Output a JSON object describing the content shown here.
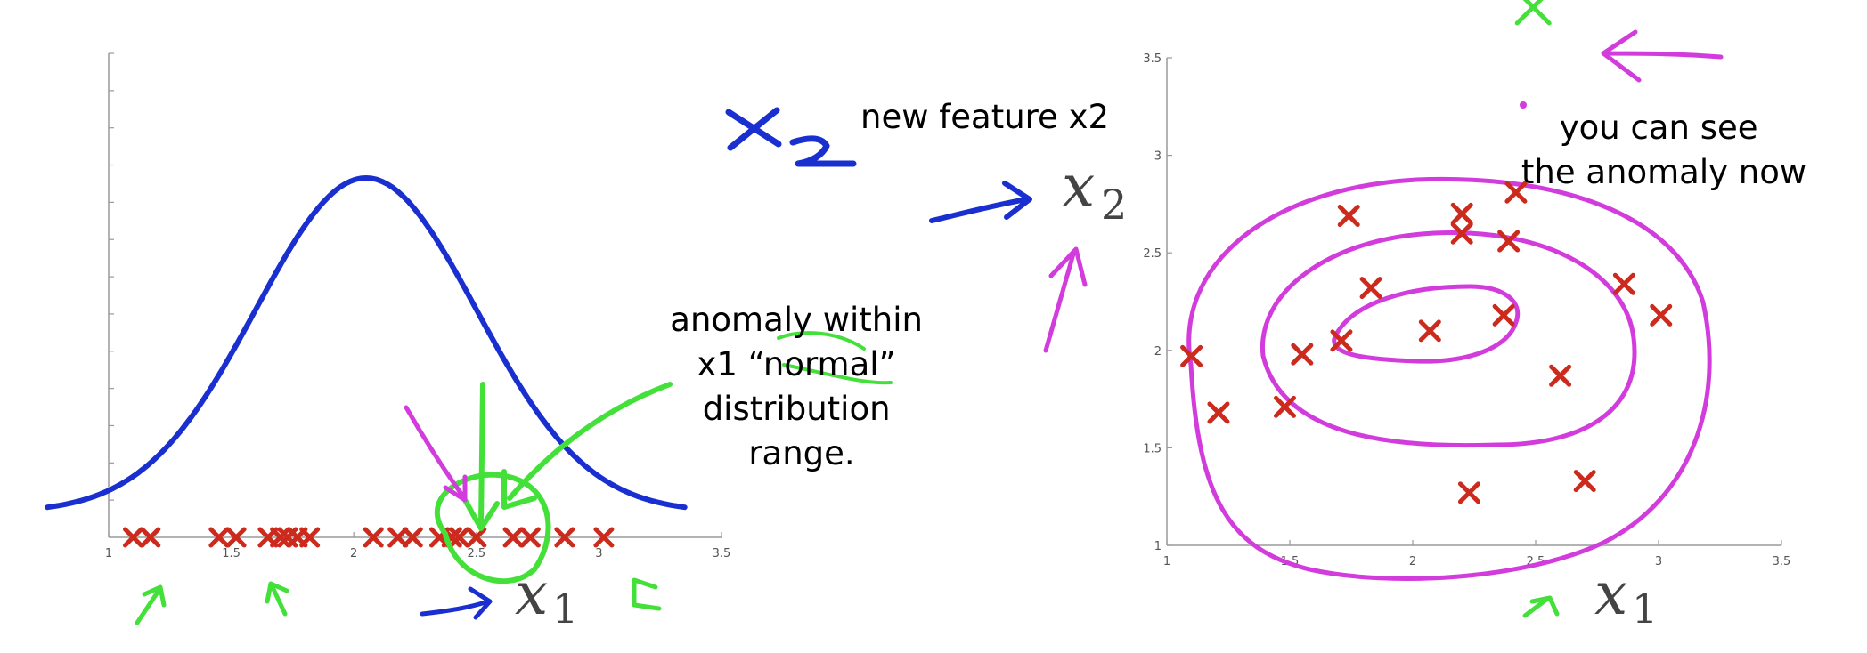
{
  "colors": {
    "axis": "#9a9a9a",
    "gaussian": "#1a2fd0",
    "marker": "#cc2a1c",
    "contour": "#d23cdc",
    "annotation_green": "#44e03a",
    "annotation_blue": "#1a2fd0",
    "annotation_magenta": "#d23cdc"
  },
  "annotations": {
    "left_note": [
      "anomaly within",
      "x1 “normal”",
      "distribution",
      "range."
    ],
    "top_note": "new feature x2",
    "right_note": [
      "you can see",
      "the anomaly now"
    ]
  },
  "chart_data": [
    {
      "type": "scatter",
      "title": "",
      "xlabel": "x1",
      "xlim": [
        1,
        3.5
      ],
      "x_ticks": [
        "1",
        "1.5",
        "2",
        "2.5",
        "3",
        "3.5"
      ],
      "grid": false,
      "curve": {
        "name": "",
        "shape": "gaussian",
        "mean": 2.05,
        "std": 0.45
      },
      "points": [
        1.1,
        1.17,
        1.45,
        1.52,
        1.65,
        1.7,
        1.73,
        1.77,
        1.82,
        2.08,
        2.18,
        2.24,
        2.35,
        2.4,
        2.43,
        2.65,
        2.72,
        2.86,
        3.02
      ],
      "anomaly_x": 2.5
    },
    {
      "type": "scatter",
      "title": "",
      "xlabel": "x1",
      "ylabel": "x2",
      "xlim": [
        1,
        3.5
      ],
      "ylim": [
        1,
        3.5
      ],
      "x_ticks": [
        "1",
        "1.5",
        "2",
        "2.5",
        "3",
        "3.5"
      ],
      "y_ticks": [
        "1",
        "1.5",
        "2",
        "2.5",
        "3",
        "3.5"
      ],
      "grid": false,
      "points": [
        {
          "x": 1.1,
          "y": 1.97
        },
        {
          "x": 1.21,
          "y": 1.68
        },
        {
          "x": 1.48,
          "y": 1.71
        },
        {
          "x": 1.55,
          "y": 1.98
        },
        {
          "x": 1.71,
          "y": 2.05
        },
        {
          "x": 1.74,
          "y": 2.69
        },
        {
          "x": 1.83,
          "y": 2.32
        },
        {
          "x": 2.07,
          "y": 2.1
        },
        {
          "x": 2.2,
          "y": 2.7
        },
        {
          "x": 2.2,
          "y": 2.6
        },
        {
          "x": 2.23,
          "y": 1.27
        },
        {
          "x": 2.37,
          "y": 2.18
        },
        {
          "x": 2.39,
          "y": 2.56
        },
        {
          "x": 2.42,
          "y": 2.81
        },
        {
          "x": 2.6,
          "y": 1.87
        },
        {
          "x": 2.7,
          "y": 1.33
        },
        {
          "x": 2.86,
          "y": 2.34
        },
        {
          "x": 3.01,
          "y": 2.18
        }
      ],
      "anomaly": {
        "x": 2.49,
        "y": 3.76
      }
    }
  ]
}
